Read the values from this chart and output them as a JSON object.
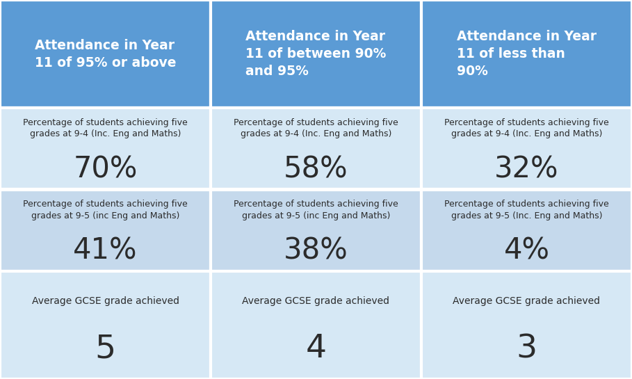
{
  "header_bg": "#5B9BD5",
  "header_text_color": "#FFFFFF",
  "row_odd_bg": "#D6E8F5",
  "row_even_bg": "#C5D9EC",
  "col_headers": [
    "Attendance in Year\n11 of 95% or above",
    "Attendance in Year\n11 of between 90%\nand 95%",
    "Attendance in Year\n11 of less than\n90%"
  ],
  "row1_label": "Percentage of students achieving five\ngrades at 9-4 (Inc. Eng and Maths)",
  "row1_values": [
    "70%",
    "58%",
    "32%"
  ],
  "row2_labels": [
    "Percentage of students achieving five\ngrades at 9-5 (inc Eng and Maths)",
    "Percentage of students achieving five\ngrades at 9-5 (inc Eng and Maths)",
    "Percentage of students achieving five\ngrades at 9-5 (Inc. Eng and Maths)"
  ],
  "row2_values": [
    "41%",
    "38%",
    "4%"
  ],
  "row3_label": "Average GCSE grade achieved",
  "row3_values": [
    "5",
    "4",
    "3"
  ],
  "figsize": [
    9.09,
    5.45
  ],
  "dpi": 100
}
